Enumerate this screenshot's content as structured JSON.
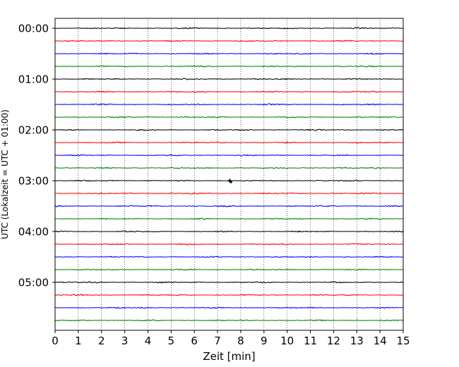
{
  "chart_data": {
    "type": "line",
    "title": "",
    "xlabel": "Zeit  [min]",
    "ylabel": "UTC (Lokalzeit = UTC + 01:00)",
    "xlim": [
      0,
      15
    ],
    "x_ticks": [
      0,
      1,
      2,
      3,
      4,
      5,
      6,
      7,
      8,
      9,
      10,
      11,
      12,
      13,
      14,
      15
    ],
    "grid_x": true,
    "y_tick_labels": [
      "00:00",
      "01:00",
      "02:00",
      "03:00",
      "04:00",
      "05:00"
    ],
    "y_tick_trace_indices": [
      0,
      4,
      8,
      12,
      16,
      20
    ],
    "trace_interval_min": 15,
    "trace_colors": [
      "#000000",
      "#ff0000",
      "#0000ff",
      "#008000"
    ],
    "traces": [
      {
        "start": "00:00"
      },
      {
        "start": "00:15"
      },
      {
        "start": "00:30"
      },
      {
        "start": "00:45"
      },
      {
        "start": "01:00"
      },
      {
        "start": "01:15"
      },
      {
        "start": "01:30"
      },
      {
        "start": "01:45"
      },
      {
        "start": "02:00"
      },
      {
        "start": "02:15"
      },
      {
        "start": "02:30"
      },
      {
        "start": "02:45"
      },
      {
        "start": "03:00"
      },
      {
        "start": "03:15"
      },
      {
        "start": "03:30"
      },
      {
        "start": "03:45"
      },
      {
        "start": "04:00"
      },
      {
        "start": "04:15"
      },
      {
        "start": "04:30"
      },
      {
        "start": "04:45"
      },
      {
        "start": "05:00"
      },
      {
        "start": "05:15"
      },
      {
        "start": "05:30"
      },
      {
        "start": "05:45"
      }
    ],
    "events": [
      {
        "trace": 12,
        "x": 7.55,
        "amplitude": 1.0
      }
    ]
  }
}
